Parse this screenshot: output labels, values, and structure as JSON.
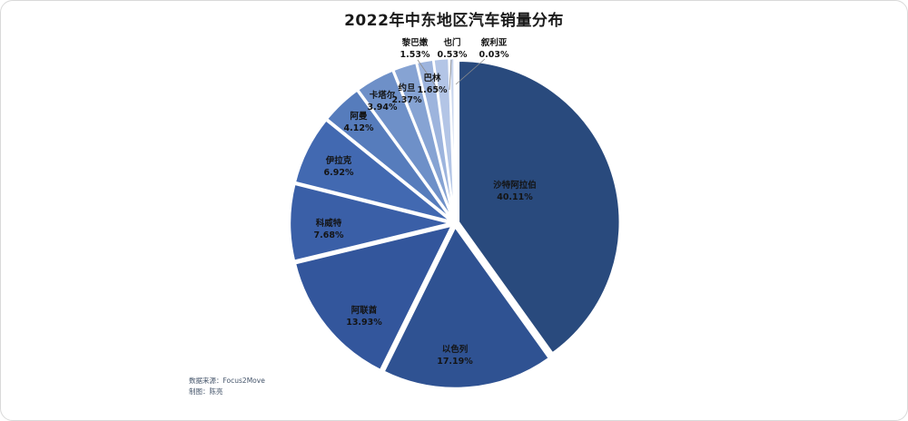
{
  "card": {
    "title": "2022年中东地区汽车销量分布",
    "footer": {
      "source_label": "数据来源：Focus2Move",
      "author_label": "制图：陈亮"
    }
  },
  "chart_data": {
    "type": "pie",
    "title": "2022年中东地区汽车销量分布",
    "unit": "percent",
    "start_angle_deg": 0,
    "direction": "clockwise",
    "legend_position": "none",
    "label_format": "name + percent (2 decimals)",
    "slices": [
      {
        "name": "沙特阿拉伯",
        "value": 40.11,
        "color": "#294a7d",
        "label_placement": "inside"
      },
      {
        "name": "以色列",
        "value": 17.19,
        "color": "#2f5292",
        "label_placement": "inside"
      },
      {
        "name": "阿联酋",
        "value": 13.93,
        "color": "#33569c",
        "label_placement": "inside"
      },
      {
        "name": "科威特",
        "value": 7.68,
        "color": "#3a5fa7",
        "label_placement": "inside"
      },
      {
        "name": "伊拉克",
        "value": 6.92,
        "color": "#4269b1",
        "label_placement": "inside"
      },
      {
        "name": "阿曼",
        "value": 4.12,
        "color": "#567cbc",
        "label_placement": "inside"
      },
      {
        "name": "卡塔尔",
        "value": 3.94,
        "color": "#6e90c8",
        "label_placement": "inside"
      },
      {
        "name": "约旦",
        "value": 2.37,
        "color": "#86a3d3",
        "label_placement": "inside"
      },
      {
        "name": "巴林",
        "value": 1.65,
        "color": "#9db4dd",
        "label_placement": "inside"
      },
      {
        "name": "黎巴嫩",
        "value": 1.53,
        "color": "#b3c5e6",
        "label_placement": "outside"
      },
      {
        "name": "也门",
        "value": 0.53,
        "color": "#c9d6ee",
        "label_placement": "outside"
      },
      {
        "name": "叙利亚",
        "value": 0.03,
        "color": "#dee6f5",
        "label_placement": "outside"
      }
    ]
  }
}
